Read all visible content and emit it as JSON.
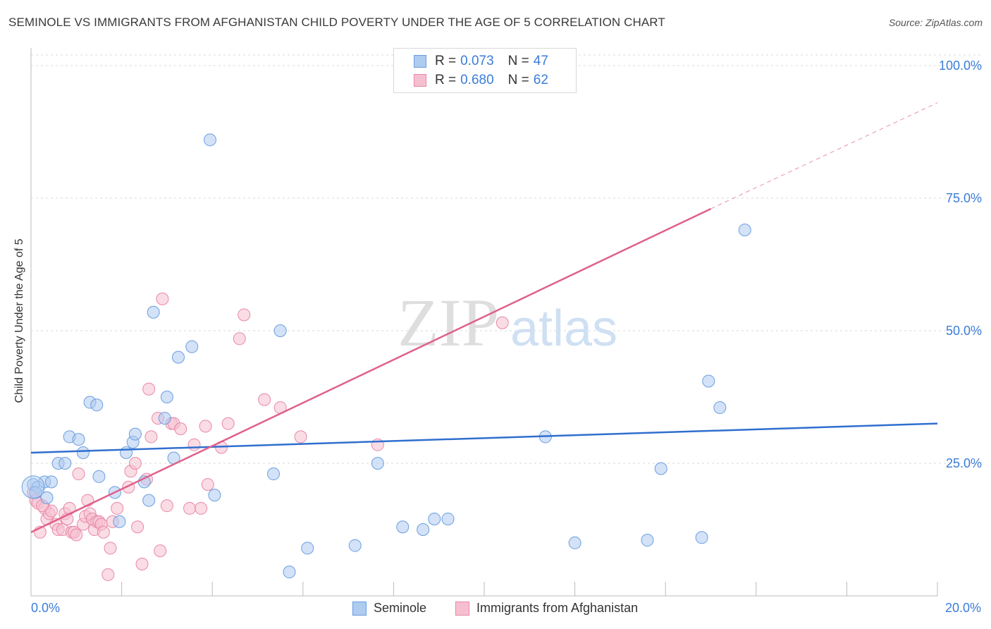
{
  "header": {
    "title": "SEMINOLE VS IMMIGRANTS FROM AFGHANISTAN CHILD POVERTY UNDER THE AGE OF 5 CORRELATION CHART",
    "source": "Source: ZipAtlas.com"
  },
  "watermark": {
    "zip": "ZIP",
    "atlas": "atlas"
  },
  "legend": {
    "r_key": "R =",
    "n_key": "N =",
    "series1": {
      "r": "0.073",
      "n": "47"
    },
    "series2": {
      "r": "0.680",
      "n": "62"
    }
  },
  "bottom_legend": {
    "series1": "Seminole",
    "series2": "Immigrants from Afghanistan"
  },
  "axes": {
    "x_min_label": "0.0%",
    "x_max_label": "20.0%"
  },
  "colors": {
    "seminole_fill": "#aecbf0",
    "seminole_stroke": "#6a9ee0",
    "seminole_line": "#2f6fcf",
    "afghan_fill": "#f6bfd0",
    "afghan_stroke": "#e888a8",
    "afghan_line": "#e0608a",
    "tick_label": "#3b7dd8",
    "grid": "#d9d9d9"
  },
  "chart_data": {
    "type": "scatter",
    "title": "SEMINOLE VS IMMIGRANTS FROM AFGHANISTAN CHILD POVERTY UNDER THE AGE OF 5 CORRELATION CHART",
    "xlabel": "",
    "ylabel": "Child Poverty Under the Age of 5",
    "xlim": [
      0,
      20
    ],
    "ylim": [
      0,
      102
    ],
    "y_ticks": [
      25,
      50,
      75,
      100
    ],
    "y_tick_labels": [
      "25.0%",
      "50.0%",
      "75.0%",
      "100.0%"
    ],
    "grid": true,
    "legend_position": "top-center",
    "series": [
      {
        "name": "Seminole",
        "r": 0.073,
        "n": 47,
        "trend": {
          "x0": 0,
          "y0": 27.0,
          "x1": 20,
          "y1": 32.5,
          "dashed_from": null
        },
        "points": [
          [
            0.05,
            21.0
          ],
          [
            0.15,
            20.5
          ],
          [
            0.3,
            21.5
          ],
          [
            0.45,
            21.5
          ],
          [
            0.6,
            25.0
          ],
          [
            0.75,
            25.0
          ],
          [
            0.85,
            30.0
          ],
          [
            1.05,
            29.5
          ],
          [
            1.15,
            27.0
          ],
          [
            1.3,
            36.5
          ],
          [
            1.45,
            36.0
          ],
          [
            1.5,
            22.5
          ],
          [
            1.85,
            19.5
          ],
          [
            1.95,
            14.0
          ],
          [
            2.1,
            27.0
          ],
          [
            2.25,
            29.0
          ],
          [
            2.3,
            30.5
          ],
          [
            2.5,
            21.5
          ],
          [
            2.6,
            18.0
          ],
          [
            2.7,
            53.5
          ],
          [
            2.95,
            33.5
          ],
          [
            3.0,
            37.5
          ],
          [
            3.15,
            26.0
          ],
          [
            3.25,
            45.0
          ],
          [
            3.55,
            47.0
          ],
          [
            3.95,
            86.0
          ],
          [
            4.05,
            19.0
          ],
          [
            5.35,
            23.0
          ],
          [
            5.5,
            50.0
          ],
          [
            5.7,
            4.5
          ],
          [
            6.1,
            9.0
          ],
          [
            7.15,
            9.5
          ],
          [
            7.65,
            25.0
          ],
          [
            8.2,
            13.0
          ],
          [
            8.65,
            12.5
          ],
          [
            8.9,
            14.5
          ],
          [
            9.2,
            14.5
          ],
          [
            11.35,
            30.0
          ],
          [
            12.0,
            10.0
          ],
          [
            13.6,
            10.5
          ],
          [
            13.9,
            24.0
          ],
          [
            14.8,
            11.0
          ],
          [
            14.95,
            40.5
          ],
          [
            15.2,
            35.5
          ],
          [
            15.75,
            69.0
          ],
          [
            0.1,
            19.5
          ],
          [
            0.35,
            18.5
          ]
        ]
      },
      {
        "name": "Immigrants from Afghanistan",
        "r": 0.68,
        "n": 62,
        "trend": {
          "x0": 0,
          "y0": 12.0,
          "x1": 15.0,
          "y1": 73.0,
          "dashed_to_x": 20.0,
          "dashed_to_y": 93.0
        },
        "points": [
          [
            0.05,
            19.5
          ],
          [
            0.1,
            18.0
          ],
          [
            0.15,
            17.5
          ],
          [
            0.2,
            12.0
          ],
          [
            0.3,
            16.5
          ],
          [
            0.35,
            14.5
          ],
          [
            0.4,
            15.5
          ],
          [
            0.45,
            16.0
          ],
          [
            0.55,
            13.5
          ],
          [
            0.6,
            12.5
          ],
          [
            0.7,
            12.5
          ],
          [
            0.75,
            15.5
          ],
          [
            0.8,
            14.5
          ],
          [
            0.85,
            16.5
          ],
          [
            0.9,
            12.0
          ],
          [
            0.95,
            12.0
          ],
          [
            1.0,
            11.5
          ],
          [
            1.05,
            23.0
          ],
          [
            1.15,
            13.5
          ],
          [
            1.2,
            15.0
          ],
          [
            1.25,
            18.0
          ],
          [
            1.3,
            15.5
          ],
          [
            1.35,
            14.5
          ],
          [
            1.4,
            12.5
          ],
          [
            1.45,
            14.0
          ],
          [
            1.5,
            14.0
          ],
          [
            1.55,
            13.5
          ],
          [
            1.6,
            12.0
          ],
          [
            1.7,
            4.0
          ],
          [
            1.75,
            9.0
          ],
          [
            1.8,
            14.0
          ],
          [
            1.9,
            16.5
          ],
          [
            2.15,
            20.5
          ],
          [
            2.2,
            23.5
          ],
          [
            2.3,
            25.0
          ],
          [
            2.35,
            13.0
          ],
          [
            2.45,
            6.0
          ],
          [
            2.55,
            22.0
          ],
          [
            2.6,
            39.0
          ],
          [
            2.65,
            30.0
          ],
          [
            2.8,
            33.5
          ],
          [
            2.85,
            8.5
          ],
          [
            2.9,
            56.0
          ],
          [
            3.0,
            17.0
          ],
          [
            3.1,
            32.5
          ],
          [
            3.15,
            32.5
          ],
          [
            3.3,
            31.5
          ],
          [
            3.5,
            16.5
          ],
          [
            3.6,
            28.5
          ],
          [
            3.75,
            16.5
          ],
          [
            3.85,
            32.0
          ],
          [
            3.9,
            21.0
          ],
          [
            4.2,
            28.0
          ],
          [
            4.35,
            32.5
          ],
          [
            4.6,
            48.5
          ],
          [
            4.7,
            53.0
          ],
          [
            5.15,
            37.0
          ],
          [
            5.5,
            35.5
          ],
          [
            5.95,
            30.0
          ],
          [
            7.65,
            28.5
          ],
          [
            10.4,
            51.5
          ],
          [
            0.25,
            17.0
          ]
        ]
      }
    ]
  }
}
